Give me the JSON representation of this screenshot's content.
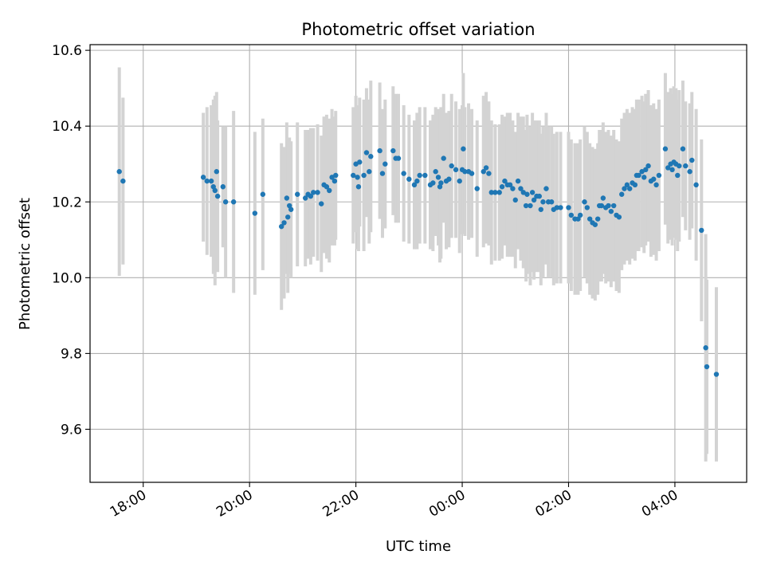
{
  "chart_data": {
    "type": "scatter",
    "title": "Photometric offset variation",
    "xlabel": "UTC time",
    "ylabel": "Photometric offset",
    "x_unit": "hours since 00:00 UTC",
    "xlim": [
      -7.0,
      5.35
    ],
    "ylim": [
      9.46,
      10.615
    ],
    "grid": true,
    "x_ticks": [
      {
        "value": -6,
        "label": "18:00"
      },
      {
        "value": -4,
        "label": "20:00"
      },
      {
        "value": -2,
        "label": "22:00"
      },
      {
        "value": 0,
        "label": "00:00"
      },
      {
        "value": 2,
        "label": "02:00"
      },
      {
        "value": 4,
        "label": "04:00"
      }
    ],
    "y_ticks": [
      {
        "value": 9.6,
        "label": "9.6"
      },
      {
        "value": 9.8,
        "label": "9.8"
      },
      {
        "value": 10.0,
        "label": "10.0"
      },
      {
        "value": 10.2,
        "label": "10.2"
      },
      {
        "value": 10.4,
        "label": "10.4"
      },
      {
        "value": 10.6,
        "label": "10.6"
      }
    ],
    "colors": {
      "point": "#1f77b4",
      "errorbar": "#d3d3d3",
      "grid": "#b0b0b0",
      "axis": "#000000"
    },
    "series": [
      {
        "name": "Photometric offset",
        "points": [
          [
            -6.45,
            10.28,
            0.275
          ],
          [
            -6.38,
            10.255,
            0.22
          ],
          [
            -4.87,
            10.265,
            0.17
          ],
          [
            -4.8,
            10.255,
            0.195
          ],
          [
            -4.72,
            10.255,
            0.2
          ],
          [
            -4.68,
            10.24,
            0.23
          ],
          [
            -4.65,
            10.23,
            0.25
          ],
          [
            -4.62,
            10.28,
            0.21
          ],
          [
            -4.6,
            10.215,
            0.2
          ],
          [
            -4.5,
            10.24,
            0.16
          ],
          [
            -4.45,
            10.2,
            0.2
          ],
          [
            -4.3,
            10.2,
            0.24
          ],
          [
            -3.9,
            10.17,
            0.215
          ],
          [
            -3.75,
            10.22,
            0.2
          ],
          [
            -3.4,
            10.135,
            0.22
          ],
          [
            -3.35,
            10.145,
            0.2
          ],
          [
            -3.3,
            10.21,
            0.2
          ],
          [
            -3.28,
            10.16,
            0.2
          ],
          [
            -3.25,
            10.19,
            0.18
          ],
          [
            -3.22,
            10.18,
            0.18
          ],
          [
            -3.1,
            10.22,
            0.19
          ],
          [
            -2.95,
            10.21,
            0.18
          ],
          [
            -2.9,
            10.22,
            0.17
          ],
          [
            -2.85,
            10.215,
            0.18
          ],
          [
            -2.8,
            10.225,
            0.17
          ],
          [
            -2.72,
            10.225,
            0.18
          ],
          [
            -2.65,
            10.195,
            0.18
          ],
          [
            -2.6,
            10.245,
            0.18
          ],
          [
            -2.55,
            10.24,
            0.19
          ],
          [
            -2.5,
            10.23,
            0.19
          ],
          [
            -2.45,
            10.265,
            0.18
          ],
          [
            -2.4,
            10.255,
            0.17
          ],
          [
            -2.38,
            10.27,
            0.17
          ],
          [
            -2.05,
            10.27,
            0.18
          ],
          [
            -2.0,
            10.3,
            0.18
          ],
          [
            -1.97,
            10.265,
            0.19
          ],
          [
            -1.95,
            10.24,
            0.17
          ],
          [
            -1.93,
            10.305,
            0.17
          ],
          [
            -1.85,
            10.27,
            0.2
          ],
          [
            -1.8,
            10.33,
            0.17
          ],
          [
            -1.75,
            10.28,
            0.19
          ],
          [
            -1.72,
            10.32,
            0.2
          ],
          [
            -1.55,
            10.335,
            0.18
          ],
          [
            -1.5,
            10.275,
            0.17
          ],
          [
            -1.45,
            10.3,
            0.17
          ],
          [
            -1.3,
            10.335,
            0.17
          ],
          [
            -1.25,
            10.315,
            0.17
          ],
          [
            -1.2,
            10.315,
            0.17
          ],
          [
            -1.1,
            10.275,
            0.18
          ],
          [
            -1.0,
            10.26,
            0.17
          ],
          [
            -0.9,
            10.245,
            0.17
          ],
          [
            -0.85,
            10.255,
            0.18
          ],
          [
            -0.8,
            10.27,
            0.18
          ],
          [
            -0.7,
            10.27,
            0.18
          ],
          [
            -0.6,
            10.245,
            0.17
          ],
          [
            -0.55,
            10.25,
            0.18
          ],
          [
            -0.5,
            10.28,
            0.17
          ],
          [
            -0.45,
            10.265,
            0.18
          ],
          [
            -0.42,
            10.24,
            0.2
          ],
          [
            -0.4,
            10.25,
            0.2
          ],
          [
            -0.35,
            10.315,
            0.17
          ],
          [
            -0.3,
            10.255,
            0.18
          ],
          [
            -0.25,
            10.26,
            0.18
          ],
          [
            -0.2,
            10.295,
            0.19
          ],
          [
            -0.12,
            10.285,
            0.18
          ],
          [
            -0.05,
            10.255,
            0.19
          ],
          [
            0.0,
            10.285,
            0.17
          ],
          [
            0.02,
            10.34,
            0.2
          ],
          [
            0.05,
            10.28,
            0.17
          ],
          [
            0.12,
            10.28,
            0.18
          ],
          [
            0.18,
            10.275,
            0.17
          ],
          [
            0.28,
            10.235,
            0.18
          ],
          [
            0.4,
            10.28,
            0.2
          ],
          [
            0.45,
            10.29,
            0.2
          ],
          [
            0.5,
            10.275,
            0.19
          ],
          [
            0.55,
            10.225,
            0.19
          ],
          [
            0.62,
            10.225,
            0.18
          ],
          [
            0.7,
            10.225,
            0.18
          ],
          [
            0.75,
            10.24,
            0.19
          ],
          [
            0.8,
            10.255,
            0.17
          ],
          [
            0.85,
            10.245,
            0.19
          ],
          [
            0.9,
            10.245,
            0.19
          ],
          [
            0.95,
            10.235,
            0.18
          ],
          [
            1.0,
            10.205,
            0.18
          ],
          [
            1.05,
            10.255,
            0.18
          ],
          [
            1.1,
            10.235,
            0.19
          ],
          [
            1.15,
            10.225,
            0.2
          ],
          [
            1.2,
            10.19,
            0.2
          ],
          [
            1.22,
            10.22,
            0.21
          ],
          [
            1.28,
            10.19,
            0.21
          ],
          [
            1.32,
            10.225,
            0.21
          ],
          [
            1.35,
            10.205,
            0.21
          ],
          [
            1.4,
            10.215,
            0.2
          ],
          [
            1.45,
            10.215,
            0.2
          ],
          [
            1.48,
            10.18,
            0.2
          ],
          [
            1.52,
            10.2,
            0.2
          ],
          [
            1.58,
            10.235,
            0.2
          ],
          [
            1.62,
            10.2,
            0.2
          ],
          [
            1.68,
            10.2,
            0.2
          ],
          [
            1.72,
            10.18,
            0.2
          ],
          [
            1.78,
            10.185,
            0.2
          ],
          [
            1.85,
            10.185,
            0.2
          ],
          [
            2.0,
            10.185,
            0.2
          ],
          [
            2.05,
            10.165,
            0.2
          ],
          [
            2.12,
            10.155,
            0.2
          ],
          [
            2.18,
            10.155,
            0.2
          ],
          [
            2.22,
            10.165,
            0.2
          ],
          [
            2.3,
            10.2,
            0.2
          ],
          [
            2.35,
            10.185,
            0.2
          ],
          [
            2.4,
            10.155,
            0.2
          ],
          [
            2.45,
            10.145,
            0.2
          ],
          [
            2.5,
            10.14,
            0.2
          ],
          [
            2.55,
            10.155,
            0.2
          ],
          [
            2.58,
            10.19,
            0.2
          ],
          [
            2.62,
            10.19,
            0.2
          ],
          [
            2.65,
            10.21,
            0.2
          ],
          [
            2.7,
            10.185,
            0.2
          ],
          [
            2.75,
            10.19,
            0.2
          ],
          [
            2.8,
            10.175,
            0.2
          ],
          [
            2.85,
            10.19,
            0.2
          ],
          [
            2.9,
            10.165,
            0.2
          ],
          [
            2.95,
            10.16,
            0.2
          ],
          [
            3.0,
            10.22,
            0.2
          ],
          [
            3.05,
            10.235,
            0.2
          ],
          [
            3.1,
            10.245,
            0.2
          ],
          [
            3.15,
            10.235,
            0.2
          ],
          [
            3.2,
            10.25,
            0.2
          ],
          [
            3.25,
            10.245,
            0.2
          ],
          [
            3.28,
            10.27,
            0.2
          ],
          [
            3.32,
            10.27,
            0.2
          ],
          [
            3.38,
            10.28,
            0.2
          ],
          [
            3.42,
            10.265,
            0.2
          ],
          [
            3.45,
            10.285,
            0.2
          ],
          [
            3.5,
            10.295,
            0.2
          ],
          [
            3.55,
            10.255,
            0.2
          ],
          [
            3.6,
            10.26,
            0.2
          ],
          [
            3.65,
            10.245,
            0.2
          ],
          [
            3.7,
            10.27,
            0.2
          ],
          [
            3.82,
            10.34,
            0.2
          ],
          [
            3.87,
            10.29,
            0.2
          ],
          [
            3.92,
            10.3,
            0.2
          ],
          [
            3.95,
            10.285,
            0.2
          ],
          [
            3.98,
            10.305,
            0.2
          ],
          [
            4.02,
            10.3,
            0.2
          ],
          [
            4.05,
            10.27,
            0.2
          ],
          [
            4.08,
            10.295,
            0.2
          ],
          [
            4.15,
            10.34,
            0.18
          ],
          [
            4.2,
            10.295,
            0.17
          ],
          [
            4.28,
            10.28,
            0.18
          ],
          [
            4.32,
            10.31,
            0.18
          ],
          [
            4.4,
            10.245,
            0.2
          ],
          [
            4.5,
            10.125,
            0.24
          ],
          [
            4.58,
            9.815,
            0.3
          ],
          [
            4.6,
            9.765,
            0.23
          ],
          [
            4.78,
            9.745,
            0.23
          ]
        ]
      }
    ]
  }
}
